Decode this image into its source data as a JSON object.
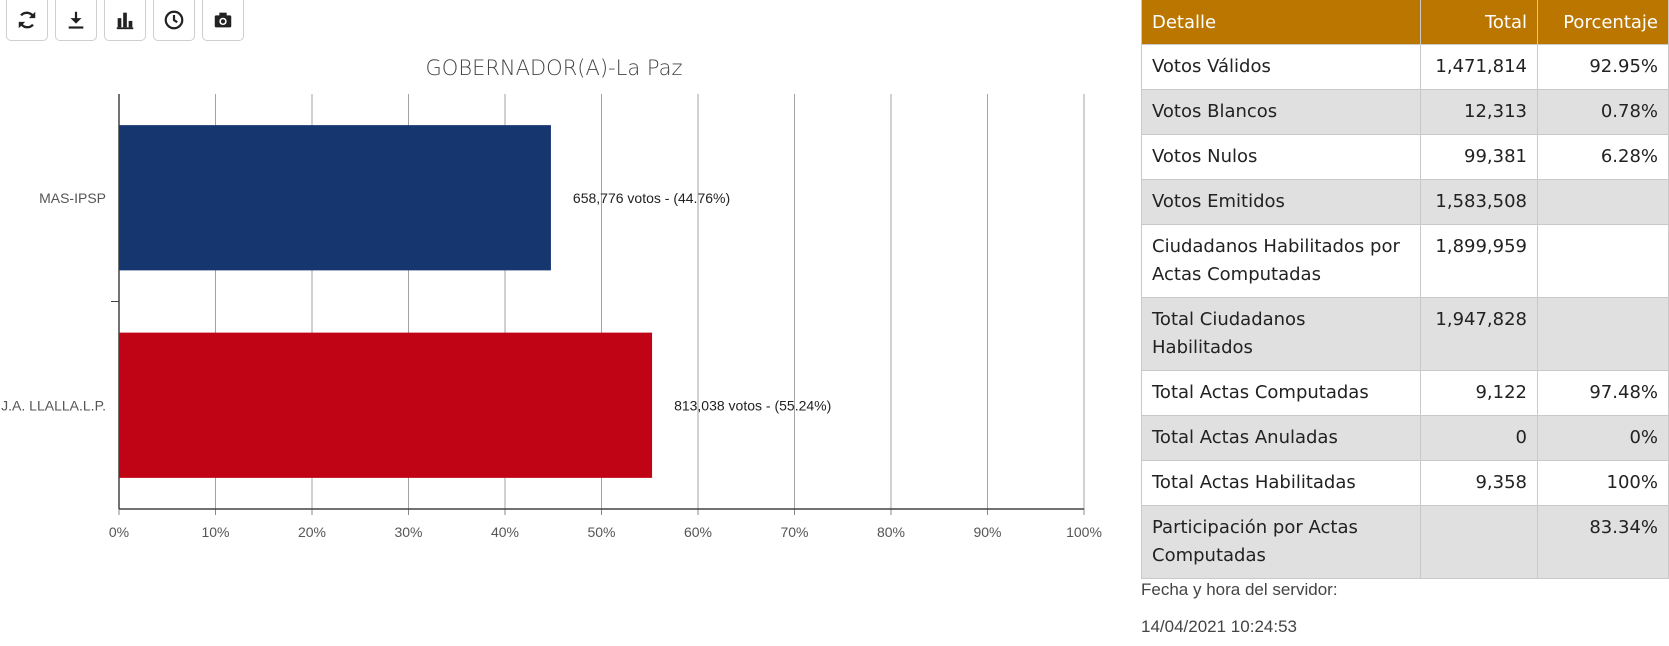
{
  "toolbar": {
    "buttons": [
      {
        "icon": "refresh-icon"
      },
      {
        "icon": "download-icon"
      },
      {
        "icon": "bar-chart-icon"
      },
      {
        "icon": "clock-icon"
      },
      {
        "icon": "camera-icon"
      }
    ]
  },
  "chart_data": {
    "type": "bar",
    "orientation": "horizontal",
    "title": "GOBERNADOR(A)-La Paz",
    "categories": [
      "MAS-IPSP",
      "J.A. LLALLA.L.P."
    ],
    "values": [
      44.76,
      55.24
    ],
    "data_labels": [
      "658,776 votos - (44.76%)",
      "813,038 votos - (55.24%)"
    ],
    "bar_colors": [
      "#163670",
      "#c00416"
    ],
    "x_ticks": [
      "0%",
      "10%",
      "20%",
      "30%",
      "40%",
      "50%",
      "60%",
      "70%",
      "80%",
      "90%",
      "100%"
    ],
    "xlim": [
      0,
      100
    ],
    "grid": true
  },
  "table": {
    "headers": {
      "detalle": "Detalle",
      "total": "Total",
      "porcentaje": "Porcentaje"
    },
    "rows": [
      {
        "detalle": "Votos Válidos",
        "total": "1,471,814",
        "porcentaje": "92.95%"
      },
      {
        "detalle": "Votos Blancos",
        "total": "12,313",
        "porcentaje": "0.78%"
      },
      {
        "detalle": "Votos Nulos",
        "total": "99,381",
        "porcentaje": "6.28%"
      },
      {
        "detalle": "Votos Emitidos",
        "total": "1,583,508",
        "porcentaje": ""
      },
      {
        "detalle": "Ciudadanos Habilitados por Actas Computadas",
        "total": "1,899,959",
        "porcentaje": ""
      },
      {
        "detalle": "Total Ciudadanos Habilitados",
        "total": "1,947,828",
        "porcentaje": ""
      },
      {
        "detalle": "Total Actas Computadas",
        "total": "9,122",
        "porcentaje": "97.48%"
      },
      {
        "detalle": "Total Actas Anuladas",
        "total": "0",
        "porcentaje": "0%"
      },
      {
        "detalle": "Total Actas Habilitadas",
        "total": "9,358",
        "porcentaje": "100%"
      },
      {
        "detalle": "Participación por Actas Computadas",
        "total": "",
        "porcentaje": "83.34%"
      }
    ]
  },
  "server": {
    "label": "Fecha y hora del servidor:",
    "datetime": "14/04/2021 10:24:53"
  },
  "colors": {
    "header_bg": "#bb7600",
    "row_alt_bg": "#e0e0e0"
  }
}
